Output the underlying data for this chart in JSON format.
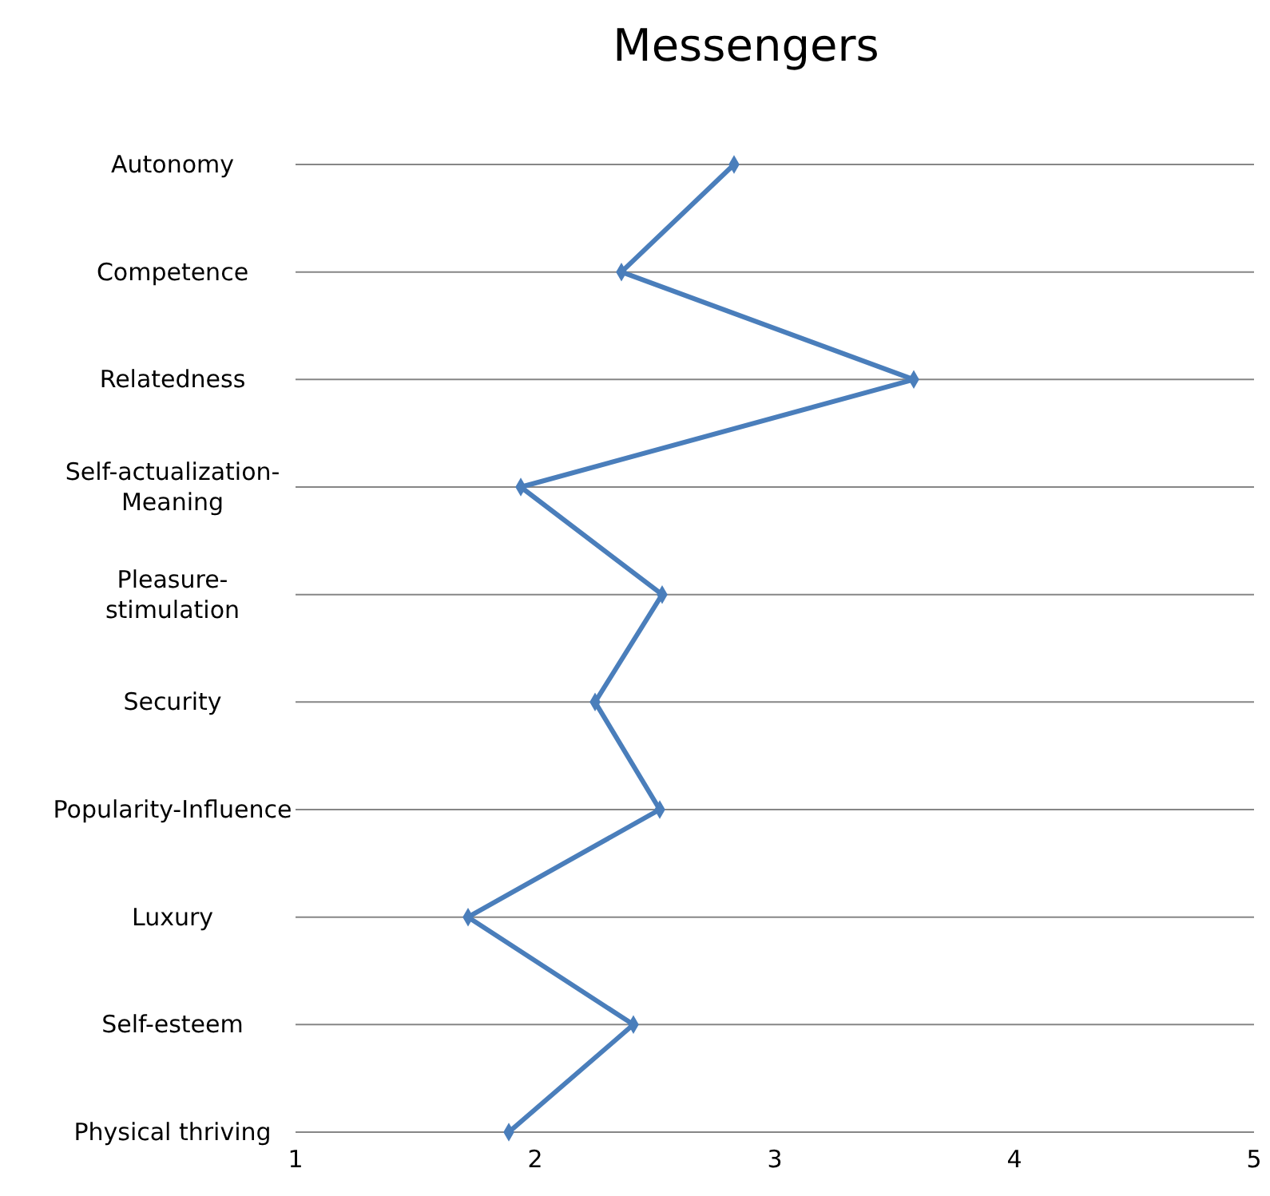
{
  "chart_data": {
    "type": "line",
    "title": "Messengers",
    "orientation": "horizontal",
    "categories": [
      "Autonomy",
      "Competence",
      "Relatedness",
      "Self-actualization-\nMeaning",
      "Pleasure-\nstimulation",
      "Security",
      "Popularity-Influence",
      "Luxury",
      "Self-esteem",
      "Physical thriving"
    ],
    "series": [
      {
        "color": "#4a7ebb",
        "values": [
          2.83,
          2.36,
          3.58,
          1.94,
          2.53,
          2.25,
          2.52,
          1.72,
          2.41,
          1.89
        ]
      }
    ],
    "xlim": [
      1,
      5
    ],
    "xticks": [
      1,
      2,
      3,
      4,
      5
    ],
    "grid": "y",
    "marker": "diamond"
  }
}
